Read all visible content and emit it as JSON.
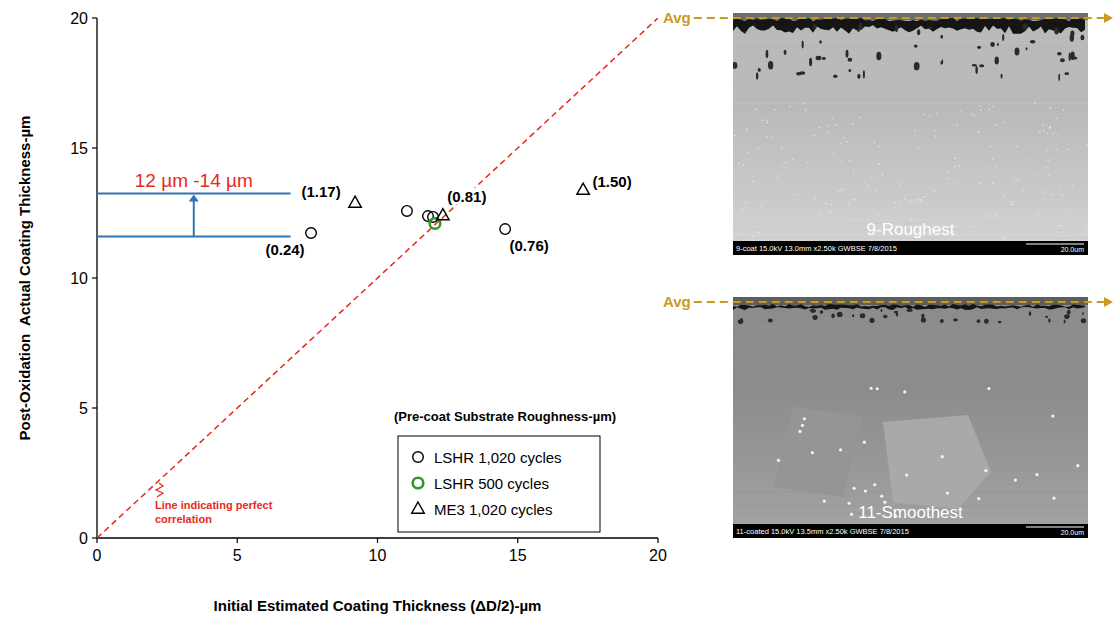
{
  "chart_data": {
    "type": "scatter",
    "x_label": "Initial Estimated Coating Thickness (ΔD/2)-µm",
    "y_label": "Post-Oxidation  Actual Coating Thickness-µm",
    "xlim": [
      0,
      20
    ],
    "ylim": [
      0,
      20
    ],
    "xticks": [
      0,
      5,
      10,
      15,
      20
    ],
    "yticks": [
      0,
      5,
      10,
      15,
      20
    ],
    "grid": false,
    "legend": "lower right",
    "legend_title": "(Pre-coat Substrate Roughness-µm)",
    "series": [
      {
        "name": "LSHR 1,020 cycles",
        "color": "#000000",
        "marker": "circle",
        "x": [
          7.63,
          11.05,
          11.8,
          11.98,
          14.55
        ],
        "values": [
          11.73,
          12.58,
          12.38,
          12.35,
          11.88
        ],
        "point_labels": [
          "(0.24)",
          null,
          null,
          null,
          "(0.76)"
        ]
      },
      {
        "name": "LSHR 500 cycles",
        "color": "#2f9a2a",
        "marker": "circle",
        "x": [
          12.05
        ],
        "values": [
          12.1
        ],
        "point_labels": [
          null
        ]
      },
      {
        "name": "ME3 1,020 cycles",
        "color": "#000000",
        "marker": "triangle",
        "x": [
          9.2,
          12.33,
          17.33
        ],
        "values": [
          12.88,
          12.4,
          13.38
        ],
        "point_labels": [
          "(1.17)",
          "(0.81)",
          "(1.50)"
        ]
      }
    ],
    "reference_line": {
      "label": "Line indicating perfect correlation",
      "color": "#e8291c",
      "line_style": "dashed",
      "x": [
        0,
        20
      ],
      "values": [
        0,
        20
      ]
    },
    "range_annotation": {
      "text": "12 µm -14 µm",
      "color": "#2e75b6",
      "y": [
        11.6,
        13.25
      ],
      "x_end": 6.9
    }
  },
  "micrographs": [
    {
      "title": "9-Roughest",
      "caption": "9-coat 15.0kV 13.0mm x2.50k GWBSE 7/8/2015",
      "scale_bar": "20.0um",
      "avg_label": "Avg"
    },
    {
      "title": "11-Smoothest",
      "caption": "11-coated 15.0kV 13.5mm x2.50k GWBSE 7/8/2015",
      "scale_bar": "20.0um",
      "avg_label": "Avg"
    }
  ]
}
